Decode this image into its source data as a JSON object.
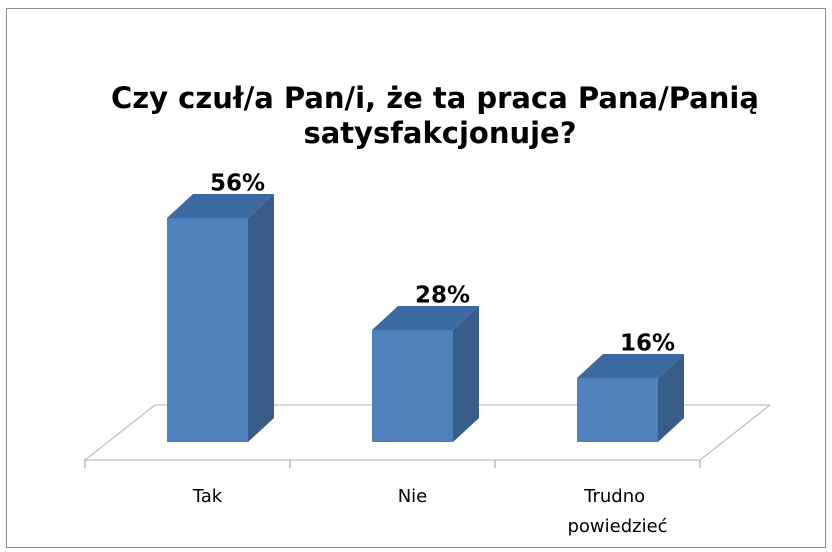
{
  "chart_data": {
    "type": "bar3d",
    "title": "Czy czuł/a Pan/i, że ta praca Pana/Panią satysfakcjonuje?",
    "categories": [
      "Tak",
      "Nie",
      "Trudno powiedzieć"
    ],
    "values": [
      56,
      28,
      16
    ],
    "value_labels": [
      "56%",
      "28%",
      "16%"
    ],
    "color": "#4f81bd"
  }
}
